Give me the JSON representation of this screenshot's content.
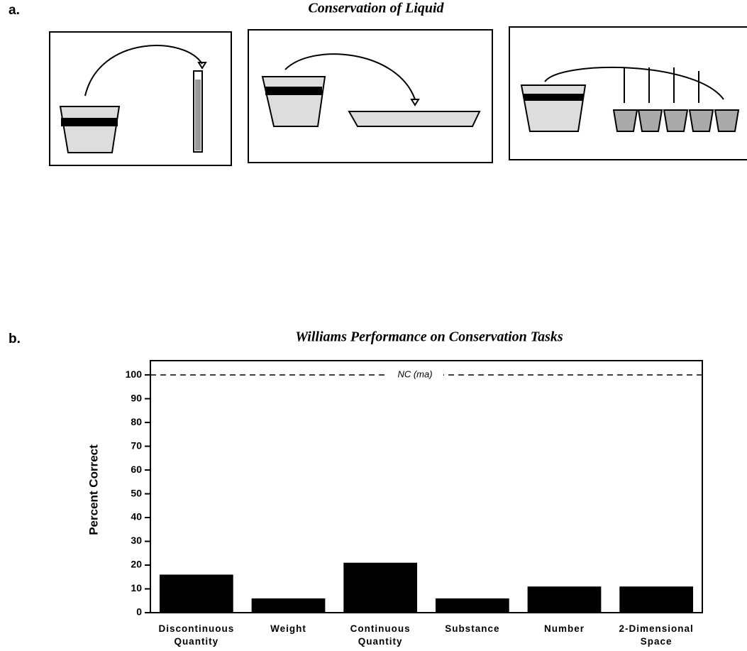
{
  "panel_a": {
    "label": "a.",
    "title": "Conservation of Liquid"
  },
  "panel_b_label": "b.",
  "chart_data": {
    "type": "bar",
    "title": "Williams Performance on Conservation Tasks",
    "y_label": "Percent Correct",
    "categories": [
      "Discontinuous Quantity",
      "Weight",
      "Continuous Quantity",
      "Substance",
      "Number",
      "2-Dimensional Space"
    ],
    "values": [
      16,
      6,
      21,
      6,
      11,
      11
    ],
    "color": "#000000",
    "ylim": [
      0,
      106
    ],
    "yticks": [
      0,
      10,
      20,
      30,
      40,
      50,
      60,
      70,
      80,
      90,
      100
    ],
    "reference_line": {
      "value": 100,
      "label": "NC (ma)"
    }
  }
}
